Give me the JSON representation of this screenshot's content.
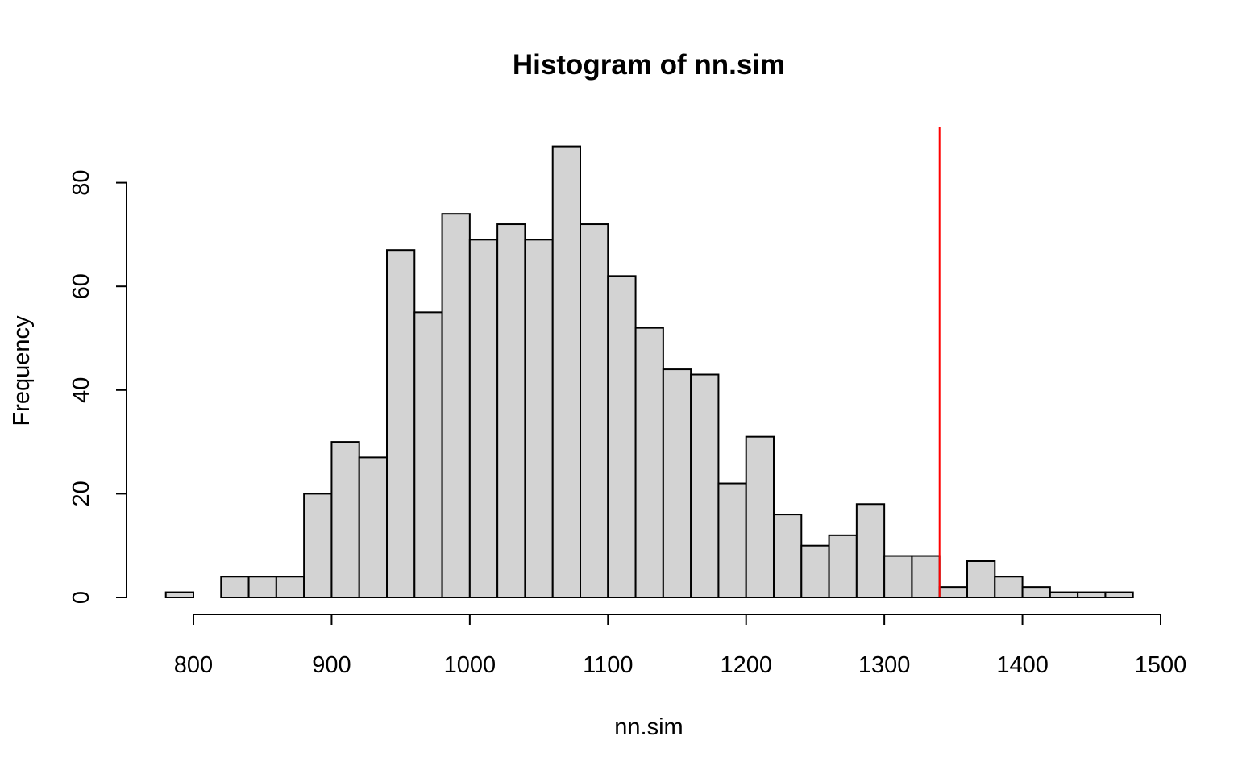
{
  "chart_data": {
    "type": "bar",
    "title": "Histogram of nn.sim",
    "xlabel": "nn.sim",
    "ylabel": "Frequency",
    "xlim": [
      780,
      1480
    ],
    "ylim": [
      0,
      87
    ],
    "x_ticks": [
      800,
      900,
      1000,
      1100,
      1200,
      1300,
      1400,
      1500
    ],
    "y_ticks": [
      0,
      20,
      40,
      60,
      80
    ],
    "bin_width": 20,
    "bin_start": 780,
    "values": [
      1,
      0,
      4,
      4,
      4,
      20,
      30,
      27,
      67,
      55,
      74,
      69,
      72,
      69,
      87,
      72,
      62,
      52,
      44,
      43,
      22,
      31,
      16,
      10,
      12,
      18,
      8,
      8,
      2,
      7,
      4,
      2,
      1,
      1,
      1
    ],
    "bar_color": "#d3d3d3",
    "reference_line": {
      "x": 1340,
      "color": "#ff0000"
    }
  }
}
